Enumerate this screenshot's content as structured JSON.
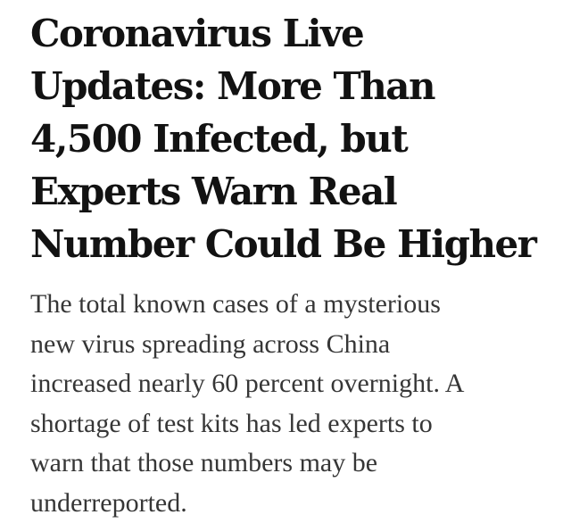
{
  "headline": {
    "lines": [
      "Coronavirus Live",
      "Updates: More Than",
      "4,500 Infected, but",
      "Experts Warn Real",
      "Number Could Be Higher"
    ]
  },
  "summary": {
    "lines": [
      "The total known cases of a mysterious",
      "new virus spreading across China",
      "increased nearly 60 percent overnight. A",
      "shortage of test kits has led experts to",
      "warn that those numbers may be",
      "underreported."
    ]
  }
}
